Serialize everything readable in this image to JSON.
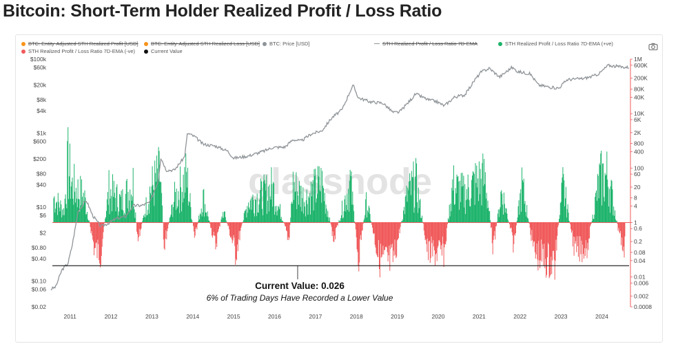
{
  "page": {
    "title": "Bitcoin: Short-Term Holder Realized Profit / Loss Ratio"
  },
  "legend": [
    {
      "label": "BTC: Entity-Adjusted STH Realized Profit [USD]",
      "color": "#f7931a",
      "strike": true,
      "marker": "dot"
    },
    {
      "label": "BTC: Entity-Adjusted STH Realized Loss [USD]",
      "color": "#f7931a",
      "strike": true,
      "marker": "dot"
    },
    {
      "label": "BTC: Price [USD]",
      "color": "#8f9498",
      "strike": false,
      "marker": "dot"
    },
    {
      "label": "STH Realized Profit / Loss Ratio 7D-EMA",
      "color": "#8f9498",
      "strike": true,
      "marker": "line"
    },
    {
      "label": "STH Realized Profit / Loss Ratio 7D-EMA (+ve)",
      "color": "#1db36b",
      "strike": false,
      "marker": "dot"
    },
    {
      "label": "STH Realized Profit / Loss Ratio 7D-EMA (-ve)",
      "color": "#f0595a",
      "strike": false,
      "marker": "dot"
    },
    {
      "label": "Current Value",
      "color": "#111111",
      "strike": false,
      "marker": "dot"
    }
  ],
  "icons": {
    "camera": "camera-icon"
  },
  "watermark": "glassnode",
  "annotation": {
    "line1": "Current Value: 0.026",
    "line2": "6% of Trading Days Have Recorded a Lower Value"
  },
  "chart_data": {
    "type": "line",
    "title": "Bitcoin: Short-Term Holder Realized Profit / Loss Ratio",
    "x_ticks": [
      "2011",
      "2012",
      "2013",
      "2014",
      "2015",
      "2016",
      "2017",
      "2018",
      "2019",
      "2020",
      "2021",
      "2022",
      "2023",
      "2024"
    ],
    "x_range": [
      2010.55,
      2024.75
    ],
    "y_left": {
      "label": "BTC: Price [USD]",
      "scale": "log",
      "range": [
        0.02,
        100000
      ],
      "ticks": [
        "$100k",
        "$60k",
        "$20k",
        "$8k",
        "$4k",
        "$1k",
        "$600",
        "$200",
        "$80",
        "$40",
        "$10",
        "$6",
        "$2",
        "$0.80",
        "$0.40",
        "$0.10",
        "$0.06",
        "$0.02"
      ],
      "tick_values": [
        100000,
        60000,
        20000,
        8000,
        4000,
        1000,
        600,
        200,
        80,
        40,
        10,
        6,
        2,
        0.8,
        0.4,
        0.1,
        0.06,
        0.02
      ]
    },
    "y_right": {
      "label": "STH Realized Profit / Loss Ratio",
      "scale": "log",
      "range": [
        0.0008,
        1000000
      ],
      "ticks": [
        "1M",
        "600K",
        "200K",
        "80K",
        "40K",
        "10K",
        "6K",
        "2K",
        "800",
        "400",
        "100",
        "60",
        "20",
        "8",
        "4",
        "1",
        "0.6",
        "0.2",
        "0.08",
        "0.04",
        "0.01",
        "0.006",
        "0.002",
        "0.0008"
      ],
      "tick_values": [
        1000000,
        600000,
        200000,
        80000,
        40000,
        10000,
        6000,
        2000,
        800,
        400,
        100,
        60,
        20,
        8,
        4,
        1,
        0.6,
        0.2,
        0.08,
        0.04,
        0.01,
        0.006,
        0.002,
        0.0008
      ]
    },
    "reference_lines": [
      {
        "name": "Ratio = 1",
        "axis": "right",
        "value": 1,
        "color": "#f0595a"
      },
      {
        "name": "Current Value",
        "axis": "right",
        "value": 0.026,
        "color": "#111111"
      }
    ],
    "series": [
      {
        "name": "BTC: Price [USD]",
        "axis": "left",
        "color": "#8f9498",
        "x": [
          2010.58,
          2010.7,
          2010.85,
          2011.0,
          2011.1,
          2011.25,
          2011.45,
          2011.6,
          2011.8,
          2011.95,
          2012.2,
          2012.4,
          2012.6,
          2012.8,
          2013.0,
          2013.2,
          2013.27,
          2013.4,
          2013.6,
          2013.85,
          2013.92,
          2014.1,
          2014.3,
          2014.6,
          2014.9,
          2015.05,
          2015.4,
          2015.8,
          2016.0,
          2016.3,
          2016.5,
          2016.7,
          2016.95,
          2017.2,
          2017.45,
          2017.7,
          2017.9,
          2017.97,
          2018.1,
          2018.4,
          2018.7,
          2018.95,
          2019.1,
          2019.4,
          2019.5,
          2019.8,
          2020.0,
          2020.2,
          2020.45,
          2020.7,
          2020.95,
          2021.1,
          2021.3,
          2021.55,
          2021.85,
          2022.0,
          2022.3,
          2022.5,
          2022.85,
          2023.0,
          2023.2,
          2023.6,
          2023.85,
          2024.0,
          2024.2,
          2024.5,
          2024.72
        ],
        "values": [
          0.06,
          0.07,
          0.2,
          0.3,
          0.9,
          8,
          15,
          6,
          3,
          3.5,
          5,
          5.5,
          11,
          11,
          13.5,
          50,
          220,
          100,
          100,
          230,
          1000,
          800,
          500,
          450,
          330,
          210,
          240,
          330,
          410,
          420,
          670,
          610,
          960,
          1150,
          2600,
          4300,
          14000,
          19500,
          9000,
          7000,
          6500,
          3600,
          3700,
          8500,
          11500,
          8000,
          7200,
          5500,
          9500,
          10800,
          28000,
          45000,
          57000,
          33000,
          60000,
          46000,
          40000,
          20000,
          17000,
          16500,
          28000,
          30000,
          35000,
          42000,
          68000,
          62000,
          60000
        ]
      },
      {
        "name": "STH Realized Profit / Loss Ratio 7D-EMA",
        "axis": "right",
        "positive_color": "#1db36b",
        "negative_color": "#f0595a",
        "baseline": 1,
        "x": [
          2010.6,
          2010.9,
          2011.0,
          2011.1,
          2011.4,
          2011.65,
          2011.8,
          2012.0,
          2012.3,
          2012.6,
          2012.7,
          2013.0,
          2013.25,
          2013.35,
          2013.6,
          2013.9,
          2014.1,
          2014.3,
          2014.6,
          2014.8,
          2015.1,
          2015.4,
          2015.8,
          2016.0,
          2016.4,
          2016.5,
          2016.8,
          2017.2,
          2017.5,
          2017.9,
          2018.1,
          2018.3,
          2018.6,
          2018.9,
          2019.0,
          2019.3,
          2019.5,
          2019.8,
          2020.2,
          2020.4,
          2020.7,
          2020.95,
          2021.2,
          2021.4,
          2021.6,
          2021.9,
          2022.1,
          2022.4,
          2022.6,
          2022.9,
          2023.1,
          2023.4,
          2023.7,
          2024.0,
          2024.2,
          2024.5,
          2024.68
        ],
        "values": [
          60,
          5,
          4000,
          200,
          40,
          0.03,
          0.02,
          100,
          20,
          300,
          0.06,
          100,
          1000,
          0.05,
          30,
          700,
          0.1,
          40,
          0.05,
          5,
          0.02,
          20,
          60,
          150,
          0.1,
          200,
          30,
          300,
          0.1,
          400,
          0.01,
          20,
          0.01,
          0.005,
          0.02,
          60,
          300,
          0.02,
          0.02,
          200,
          60,
          300,
          600,
          0.03,
          100,
          0.05,
          200,
          0.02,
          0.01,
          0.005,
          200,
          0.02,
          0.05,
          500,
          800,
          0.1,
          0.026
        ]
      }
    ]
  }
}
